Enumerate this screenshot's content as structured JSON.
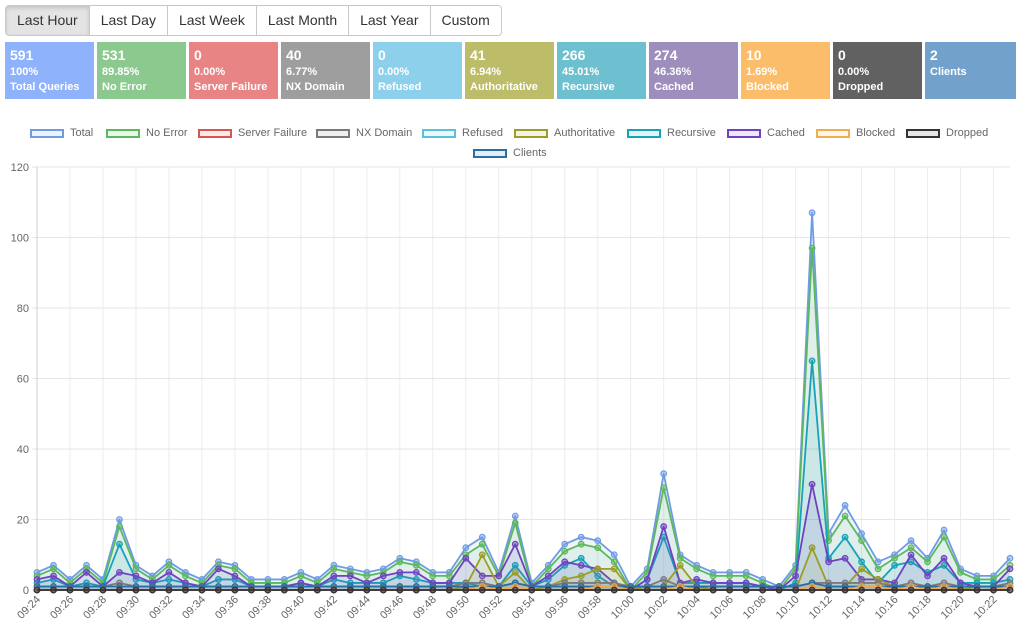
{
  "toolbar": {
    "buttons": [
      {
        "label": "Last Hour",
        "active": true
      },
      {
        "label": "Last Day"
      },
      {
        "label": "Last Week"
      },
      {
        "label": "Last Month"
      },
      {
        "label": "Last Year"
      },
      {
        "label": "Custom"
      }
    ]
  },
  "stats": [
    {
      "value": "591",
      "percent": "100%",
      "label": "Total Queries",
      "color": "#8fb2fd"
    },
    {
      "value": "531",
      "percent": "89.85%",
      "label": "No Error",
      "color": "#8cc98f"
    },
    {
      "value": "0",
      "percent": "0.00%",
      "label": "Server Failure",
      "color": "#e88484"
    },
    {
      "value": "40",
      "percent": "6.77%",
      "label": "NX Domain",
      "color": "#9e9e9e"
    },
    {
      "value": "0",
      "percent": "0.00%",
      "label": "Refused",
      "color": "#8dd0eb"
    },
    {
      "value": "41",
      "percent": "6.94%",
      "label": "Authoritative",
      "color": "#bdbc69"
    },
    {
      "value": "266",
      "percent": "45.01%",
      "label": "Recursive",
      "color": "#6cc0cf"
    },
    {
      "value": "274",
      "percent": "46.36%",
      "label": "Cached",
      "color": "#9d8ebe"
    },
    {
      "value": "10",
      "percent": "1.69%",
      "label": "Blocked",
      "color": "#fcbd6b"
    },
    {
      "value": "0",
      "percent": "0.00%",
      "label": "Dropped",
      "color": "#616161"
    },
    {
      "value": "2",
      "percent": "",
      "label": "Clients",
      "color": "#72a2cc"
    }
  ],
  "chart_data": {
    "type": "line",
    "ylim": [
      0,
      120
    ],
    "yticks": [
      0,
      20,
      40,
      60,
      80,
      100,
      120
    ],
    "x": [
      "09:24",
      "09:25",
      "09:26",
      "09:27",
      "09:28",
      "09:29",
      "09:30",
      "09:31",
      "09:32",
      "09:33",
      "09:34",
      "09:35",
      "09:36",
      "09:37",
      "09:38",
      "09:39",
      "09:40",
      "09:41",
      "09:42",
      "09:43",
      "09:44",
      "09:45",
      "09:46",
      "09:47",
      "09:48",
      "09:49",
      "09:50",
      "09:51",
      "09:52",
      "09:53",
      "09:54",
      "09:55",
      "09:56",
      "09:57",
      "09:58",
      "09:59",
      "10:00",
      "10:01",
      "10:02",
      "10:03",
      "10:04",
      "10:05",
      "10:06",
      "10:07",
      "10:08",
      "10:09",
      "10:10",
      "10:11",
      "10:12",
      "10:13",
      "10:14",
      "10:15",
      "10:16",
      "10:17",
      "10:18",
      "10:19",
      "10:20",
      "10:21",
      "10:22",
      "10:23"
    ],
    "xtick_labels": [
      "09:24",
      "09:26",
      "09:28",
      "09:30",
      "09:32",
      "09:34",
      "09:36",
      "09:38",
      "09:40",
      "09:42",
      "09:44",
      "09:46",
      "09:48",
      "09:50",
      "09:52",
      "09:54",
      "09:56",
      "09:58",
      "10:00",
      "10:02",
      "10:04",
      "10:06",
      "10:08",
      "10:10",
      "10:12",
      "10:14",
      "10:16",
      "10:18",
      "10:20",
      "10:22"
    ],
    "grid": true,
    "legend_position": "top",
    "series": [
      {
        "name": "Total",
        "color": "#6f9be6",
        "values": [
          5,
          7,
          3,
          7,
          3,
          20,
          7,
          4,
          8,
          5,
          3,
          8,
          7,
          3,
          3,
          3,
          5,
          3,
          7,
          6,
          5,
          6,
          9,
          8,
          5,
          5,
          12,
          15,
          5,
          21,
          2,
          7,
          13,
          15,
          14,
          10,
          1,
          6,
          33,
          10,
          7,
          5,
          5,
          5,
          3,
          1,
          7,
          107,
          16,
          24,
          16,
          8,
          10,
          14,
          9,
          17,
          6,
          4,
          4,
          9
        ]
      },
      {
        "name": "No Error",
        "color": "#5cb85c",
        "values": [
          4,
          6,
          2,
          6,
          2,
          18,
          6,
          3,
          7,
          4,
          2,
          7,
          6,
          2,
          2,
          2,
          4,
          2,
          6,
          5,
          4,
          5,
          8,
          7,
          4,
          4,
          10,
          13,
          4,
          19,
          1,
          6,
          11,
          13,
          12,
          8,
          0,
          5,
          29,
          9,
          6,
          4,
          4,
          4,
          2,
          0,
          6,
          97,
          14,
          21,
          14,
          6,
          9,
          12,
          8,
          15,
          5,
          3,
          3,
          7
        ]
      },
      {
        "name": "Server Failure",
        "color": "#d9534f",
        "values": [
          0,
          0,
          0,
          0,
          0,
          0,
          0,
          0,
          0,
          0,
          0,
          0,
          0,
          0,
          0,
          0,
          0,
          0,
          0,
          0,
          0,
          0,
          0,
          0,
          0,
          0,
          0,
          0,
          0,
          0,
          0,
          0,
          0,
          0,
          0,
          0,
          0,
          0,
          0,
          0,
          0,
          0,
          0,
          0,
          0,
          0,
          0,
          0,
          0,
          0,
          0,
          0,
          0,
          0,
          0,
          0,
          0,
          0,
          0,
          0
        ]
      },
      {
        "name": "NX Domain",
        "color": "#7a7a7a",
        "values": [
          1,
          1,
          1,
          1,
          1,
          2,
          1,
          1,
          1,
          1,
          1,
          1,
          1,
          1,
          1,
          1,
          1,
          1,
          1,
          1,
          1,
          1,
          1,
          1,
          1,
          1,
          2,
          2,
          1,
          2,
          1,
          1,
          2,
          2,
          2,
          2,
          1,
          1,
          3,
          1,
          1,
          1,
          1,
          1,
          1,
          1,
          1,
          2,
          2,
          2,
          2,
          2,
          1,
          2,
          1,
          2,
          1,
          1,
          1,
          2
        ]
      },
      {
        "name": "Refused",
        "color": "#5bc0de",
        "values": [
          0,
          0,
          0,
          0,
          0,
          0,
          0,
          0,
          0,
          0,
          0,
          0,
          0,
          0,
          0,
          0,
          0,
          0,
          0,
          0,
          0,
          0,
          0,
          0,
          0,
          0,
          0,
          0,
          0,
          0,
          0,
          0,
          0,
          0,
          0,
          0,
          0,
          0,
          0,
          0,
          0,
          0,
          0,
          0,
          0,
          0,
          0,
          0,
          0,
          0,
          0,
          0,
          0,
          0,
          0,
          0,
          0,
          0,
          0,
          0
        ]
      },
      {
        "name": "Authoritative",
        "color": "#9c9c28",
        "values": [
          0,
          0,
          0,
          0,
          0,
          0,
          0,
          0,
          0,
          0,
          0,
          0,
          0,
          0,
          0,
          0,
          0,
          0,
          0,
          0,
          0,
          0,
          0,
          0,
          0,
          0,
          1,
          10,
          1,
          5,
          0,
          1,
          3,
          4,
          6,
          6,
          0,
          1,
          1,
          7,
          1,
          0,
          0,
          0,
          0,
          0,
          0,
          12,
          1,
          1,
          6,
          3,
          1,
          1,
          1,
          1,
          0,
          1,
          1,
          1
        ]
      },
      {
        "name": "Recursive",
        "color": "#17a2b8",
        "values": [
          2,
          3,
          1,
          2,
          1,
          13,
          3,
          2,
          3,
          2,
          1,
          3,
          3,
          1,
          1,
          1,
          2,
          1,
          3,
          2,
          2,
          2,
          4,
          3,
          2,
          2,
          2,
          1,
          1,
          7,
          1,
          3,
          7,
          9,
          4,
          1,
          0,
          3,
          15,
          2,
          2,
          2,
          2,
          2,
          1,
          0,
          2,
          65,
          9,
          15,
          8,
          2,
          7,
          8,
          5,
          7,
          2,
          2,
          2,
          3
        ]
      },
      {
        "name": "Cached",
        "color": "#6f42c1",
        "values": [
          3,
          4,
          1,
          5,
          1,
          5,
          4,
          2,
          5,
          2,
          1,
          6,
          4,
          1,
          1,
          1,
          2,
          1,
          4,
          4,
          2,
          4,
          5,
          5,
          2,
          2,
          9,
          4,
          4,
          13,
          1,
          4,
          8,
          7,
          6,
          2,
          0,
          3,
          18,
          2,
          3,
          2,
          2,
          2,
          1,
          0,
          4,
          30,
          8,
          9,
          3,
          3,
          2,
          10,
          4,
          9,
          2,
          1,
          1,
          6
        ]
      },
      {
        "name": "Blocked",
        "color": "#f0ad4e",
        "values": [
          0,
          0,
          0,
          0,
          0,
          0,
          0,
          0,
          0,
          0,
          0,
          0,
          0,
          0,
          0,
          0,
          0,
          0,
          0,
          0,
          0,
          0,
          0,
          0,
          0,
          0,
          0,
          1,
          0,
          1,
          0,
          0,
          0,
          0,
          1,
          1,
          0,
          0,
          0,
          1,
          0,
          0,
          0,
          0,
          0,
          0,
          0,
          1,
          0,
          0,
          1,
          1,
          0,
          1,
          0,
          1,
          0,
          0,
          0,
          1
        ]
      },
      {
        "name": "Dropped",
        "color": "#333333",
        "values": [
          0,
          0,
          0,
          0,
          0,
          0,
          0,
          0,
          0,
          0,
          0,
          0,
          0,
          0,
          0,
          0,
          0,
          0,
          0,
          0,
          0,
          0,
          0,
          0,
          0,
          0,
          0,
          0,
          0,
          0,
          0,
          0,
          0,
          0,
          0,
          0,
          0,
          0,
          0,
          0,
          0,
          0,
          0,
          0,
          0,
          0,
          0,
          0,
          0,
          0,
          0,
          0,
          0,
          0,
          0,
          0,
          0,
          0,
          0,
          0
        ]
      },
      {
        "name": "Clients",
        "color": "#2a6ea6",
        "values": [
          1,
          1,
          1,
          1,
          1,
          1,
          1,
          1,
          1,
          1,
          1,
          1,
          1,
          1,
          1,
          1,
          1,
          1,
          1,
          1,
          1,
          1,
          1,
          1,
          1,
          1,
          1,
          1,
          1,
          2,
          1,
          1,
          1,
          1,
          1,
          1,
          1,
          1,
          1,
          1,
          1,
          1,
          1,
          1,
          1,
          1,
          1,
          2,
          1,
          1,
          1,
          1,
          1,
          1,
          1,
          1,
          1,
          1,
          1,
          1
        ]
      }
    ]
  }
}
